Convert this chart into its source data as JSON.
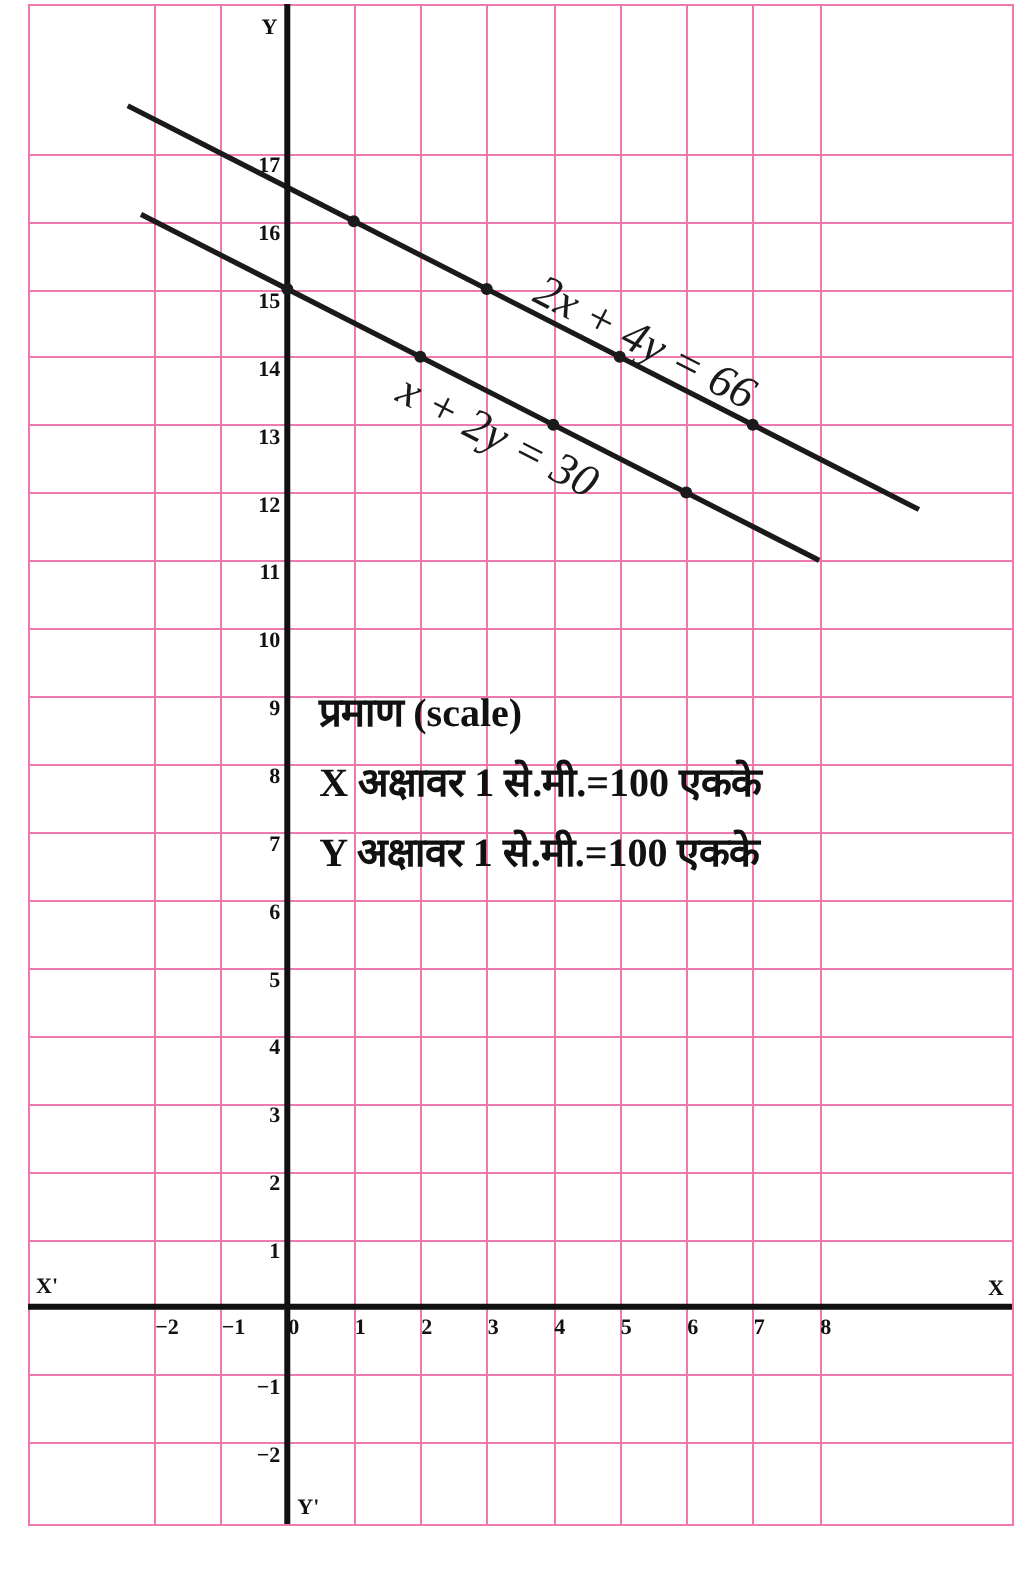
{
  "chart_data": {
    "type": "line",
    "xlabel": "X",
    "ylabel": "Y",
    "annotations": [
      "X'",
      "Y'",
      "प्रमाण  (scale)",
      "X अक्षावर  1  से.मी.=100  एकके",
      "Y अक्षावर  1  से.मी.=100  एकके"
    ],
    "xlim": [
      -3.9,
      10.9
    ],
    "ylim": [
      -3.2,
      19.2
    ],
    "xticks": [
      -2,
      -1,
      0,
      1,
      2,
      3,
      4,
      5,
      6,
      7,
      8
    ],
    "yticks": [
      -2,
      -1,
      1,
      2,
      3,
      4,
      5,
      6,
      7,
      8,
      9,
      10,
      11,
      12,
      13,
      14,
      15,
      16,
      17
    ],
    "grid": true,
    "series": [
      {
        "name": "2x + 4y = 66",
        "color": "#1a1a1a",
        "x": [
          -2.4,
          9.5
        ],
        "values": [
          17.7,
          11.75
        ]
      },
      {
        "type": "scatter",
        "color": "#1a1a1a",
        "x": [
          1,
          3,
          5,
          7
        ],
        "values": [
          16,
          15,
          14,
          13
        ]
      },
      {
        "name": "x + 2y = 30",
        "color": "#1a1a1a",
        "x": [
          -2.2,
          8.0
        ],
        "values": [
          16.1,
          11.0
        ]
      },
      {
        "type": "scatter",
        "color": "#1a1a1a",
        "x": [
          0,
          2,
          4,
          6
        ],
        "values": [
          15,
          14,
          13,
          12
        ]
      }
    ]
  }
}
